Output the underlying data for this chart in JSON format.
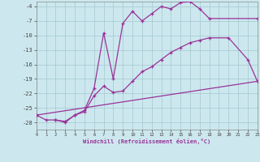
{
  "xlabel": "Windchill (Refroidissement éolien,°C)",
  "bg_color": "#cce8ee",
  "grid_color": "#aaccd4",
  "line_color": "#993399",
  "ylim": [
    -29.5,
    -3.0
  ],
  "xlim": [
    0,
    23
  ],
  "yticks": [
    -4,
    -7,
    -10,
    -13,
    -16,
    -19,
    -22,
    -25,
    -28
  ],
  "xticks": [
    0,
    1,
    2,
    3,
    4,
    5,
    6,
    7,
    8,
    9,
    10,
    11,
    12,
    13,
    14,
    15,
    16,
    17,
    18,
    19,
    20,
    21,
    22,
    23
  ],
  "line1_x": [
    0,
    1,
    2,
    3,
    4,
    5,
    6,
    7,
    8,
    9,
    10,
    11,
    12,
    13,
    14,
    15,
    16,
    17,
    18,
    23
  ],
  "line1_y": [
    -26.5,
    -27.5,
    -27.5,
    -28.0,
    -26.5,
    -25.5,
    -21.0,
    -9.5,
    -19.0,
    -7.5,
    -5.0,
    -7.0,
    -5.5,
    -4.0,
    -4.5,
    -3.2,
    -3.0,
    -4.5,
    -6.5,
    -6.5
  ],
  "line2_x": [
    2,
    3,
    4,
    5,
    6,
    7,
    8,
    9,
    10,
    11,
    12,
    13,
    14,
    15,
    16,
    17,
    18,
    20,
    22,
    23
  ],
  "line2_y": [
    -27.5,
    -27.8,
    -26.5,
    -25.8,
    -22.5,
    -20.5,
    -21.8,
    -21.5,
    -19.5,
    -17.5,
    -16.5,
    -15.0,
    -13.5,
    -12.5,
    -11.5,
    -11.0,
    -10.5,
    -10.5,
    -15.0,
    -19.5
  ],
  "line3_x": [
    0,
    23
  ],
  "line3_y": [
    -26.5,
    -19.5
  ],
  "figsize": [
    3.2,
    2.0
  ],
  "dpi": 100
}
